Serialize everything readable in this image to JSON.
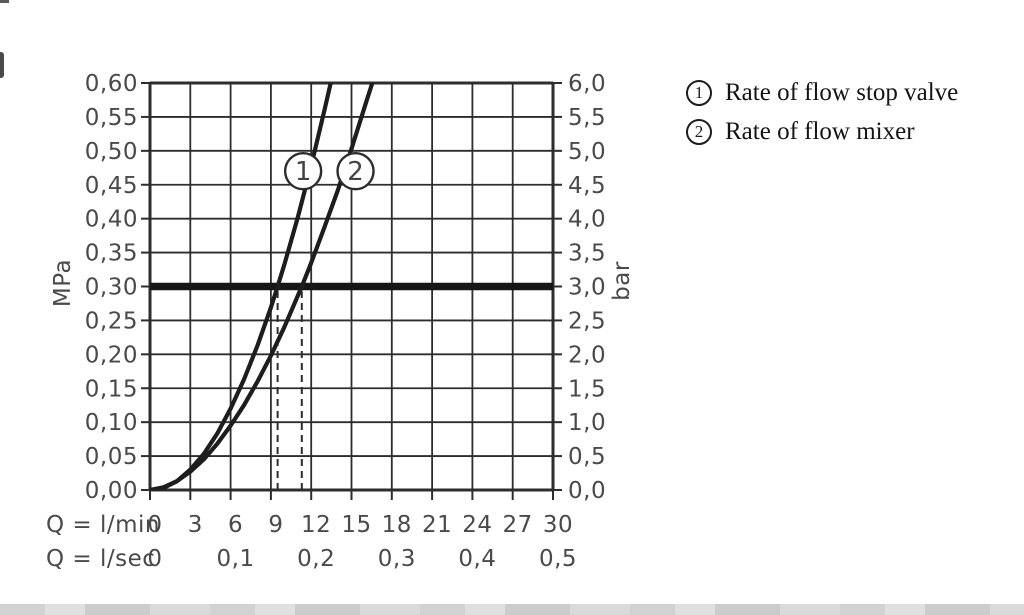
{
  "page": {
    "background": "#ffffff"
  },
  "colors": {
    "grid": "#2d2d2d",
    "curve": "#1d1d1d",
    "reference_line": "#161616",
    "tick_text": "#4a4a4a",
    "marker_text": "#444444",
    "legend_text": "#141414",
    "bottom_band": "#d2d2d2"
  },
  "legend": {
    "items": [
      {
        "symbol": "1",
        "label": "Rate of flow stop valve"
      },
      {
        "symbol": "2",
        "label": "Rate of flow mixer"
      }
    ]
  },
  "chart_data": {
    "type": "line",
    "grid": true,
    "x_axis": {
      "label_lmin": "Q = l/min",
      "label_lsec": "Q = l/sec",
      "range_lmin": [
        0,
        30
      ],
      "ticks_lmin": {
        "values": [
          0,
          3,
          6,
          9,
          12,
          15,
          18,
          21,
          24,
          27,
          30
        ],
        "labels": [
          "0",
          "3",
          "6",
          "9",
          "12",
          "15",
          "18",
          "21",
          "24",
          "27",
          "30"
        ]
      },
      "ticks_lsec": {
        "values": [
          0,
          6,
          12,
          18,
          24,
          30
        ],
        "labels": [
          "0",
          "0,1",
          "0,2",
          "0,3",
          "0,4",
          "0,5"
        ]
      }
    },
    "y_axis_left": {
      "unit": "MPa",
      "range": [
        0,
        0.6
      ],
      "tick_step": 0.05,
      "labels": [
        "0,00",
        "0,05",
        "0,10",
        "0,15",
        "0,20",
        "0,25",
        "0,30",
        "0,35",
        "0,40",
        "0,45",
        "0,50",
        "0,55",
        "0,60"
      ]
    },
    "y_axis_right": {
      "unit": "bar",
      "range": [
        0,
        6.0
      ],
      "tick_step": 0.5,
      "labels": [
        "0,0",
        "0,5",
        "1,0",
        "1,5",
        "2,0",
        "2,5",
        "3,0",
        "3,5",
        "4,0",
        "4,5",
        "5,0",
        "5,5",
        "6,0"
      ]
    },
    "reference_line": {
      "mpa": 0.3,
      "bar": 3.0
    },
    "dashed_guides_q_lmin": [
      9.5,
      11.3
    ],
    "series": [
      {
        "name": "Rate of flow stop valve",
        "marker": {
          "label": "1",
          "q": 11.4,
          "p": 0.47
        },
        "points": [
          [
            0,
            0
          ],
          [
            1,
            0.003
          ],
          [
            2,
            0.013
          ],
          [
            3,
            0.03
          ],
          [
            4,
            0.053
          ],
          [
            5,
            0.083
          ],
          [
            6,
            0.12
          ],
          [
            7,
            0.163
          ],
          [
            8,
            0.213
          ],
          [
            9,
            0.269
          ],
          [
            9.5,
            0.3
          ],
          [
            10,
            0.332
          ],
          [
            11,
            0.402
          ],
          [
            12,
            0.478
          ],
          [
            13,
            0.561
          ],
          [
            13.45,
            0.6
          ]
        ]
      },
      {
        "name": "Rate of flow mixer",
        "marker": {
          "label": "2",
          "q": 15.3,
          "p": 0.47
        },
        "points": [
          [
            0,
            0
          ],
          [
            1,
            0.004
          ],
          [
            2,
            0.013
          ],
          [
            3,
            0.027
          ],
          [
            4,
            0.045
          ],
          [
            5,
            0.068
          ],
          [
            6,
            0.095
          ],
          [
            7,
            0.125
          ],
          [
            8,
            0.16
          ],
          [
            9,
            0.198
          ],
          [
            10,
            0.24
          ],
          [
            11.3,
            0.3
          ],
          [
            12,
            0.335
          ],
          [
            13,
            0.388
          ],
          [
            14,
            0.443
          ],
          [
            15,
            0.503
          ],
          [
            16,
            0.566
          ],
          [
            16.55,
            0.6
          ]
        ]
      }
    ]
  }
}
